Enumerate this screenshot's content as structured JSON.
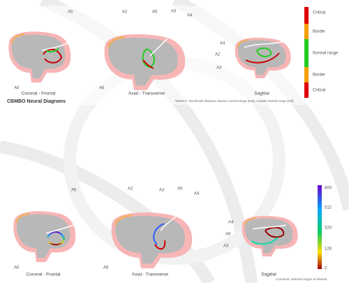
{
  "top_panel": {
    "title": "CBMBO Neural Diagrams",
    "caption": "*NMSCC: the BCOD distance closest; normal range (teal), outside normal range (red)",
    "axis_labels": [
      "A5",
      "A2",
      "A5",
      "A3",
      "A4",
      "A4",
      "A2",
      "A3",
      "A6",
      "A6"
    ],
    "views": [
      "Coronal - Frontal",
      "Axial - Transverse",
      "Sagittal"
    ],
    "legend": [
      "Critical",
      "Border",
      "Normal range",
      "Border",
      "Critical"
    ]
  },
  "bottom_panel": {
    "caption": "Comment: selected region of interest",
    "axis_labels": [
      "A5",
      "A2",
      "A3",
      "A5",
      "A4",
      "A4",
      "A6",
      "A3",
      "A6",
      "A6"
    ],
    "views": [
      "Coronal - Frontal",
      "Axial - Transverse",
      "Sagittal"
    ],
    "legend": [
      "800",
      "512",
      "320",
      "128",
      "0"
    ]
  }
}
